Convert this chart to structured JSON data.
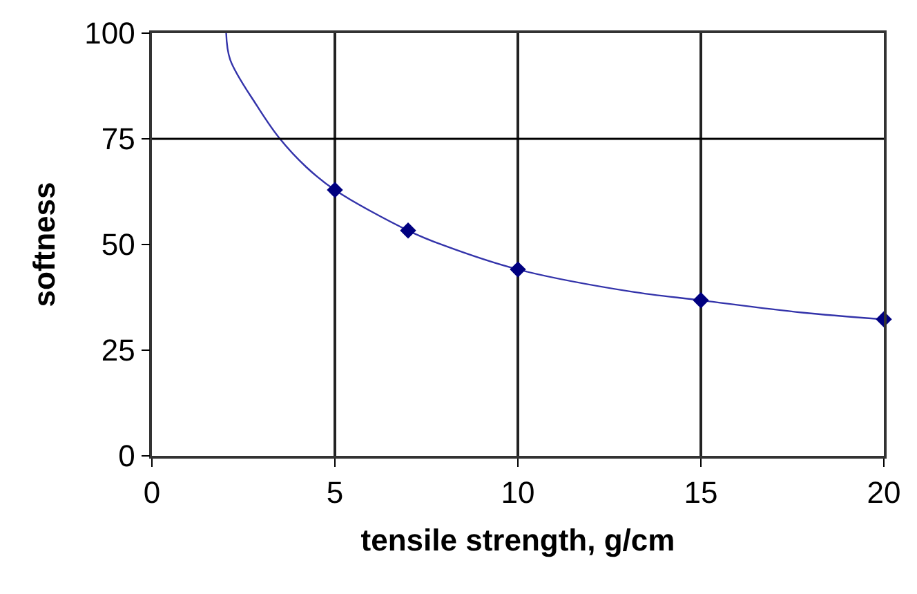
{
  "chart_data": {
    "type": "scatter",
    "xlabel": "tensile strength, g/cm",
    "ylabel": "softness",
    "xlim": [
      0,
      20
    ],
    "xticks": [
      0,
      5,
      10,
      15,
      20
    ],
    "ylim": [
      0,
      100
    ],
    "yticks": [
      0,
      25,
      50,
      75,
      100
    ],
    "grid": "x",
    "ref_lines": [
      {
        "axis": "y",
        "value": 75,
        "label": null,
        "color": "#000000"
      }
    ],
    "series": [
      {
        "type": "line",
        "color": "#3333aa",
        "marker": "none",
        "x": [
          2.03,
          2.14,
          2.88,
          3.48,
          4.22,
          5,
          7,
          7.97,
          10,
          13.06,
          15,
          17.76,
          20
        ],
        "values": [
          100,
          93.7,
          82.7,
          75.2,
          68.3,
          62.9,
          53.3,
          49.8,
          44.1,
          38.9,
          36.8,
          33.9,
          32.3
        ]
      },
      {
        "color": "#000080",
        "marker": "diamond",
        "x": [
          5,
          7,
          10,
          15,
          20
        ],
        "values": [
          62.9,
          53.3,
          44.1,
          36.8,
          32.3
        ]
      }
    ]
  }
}
